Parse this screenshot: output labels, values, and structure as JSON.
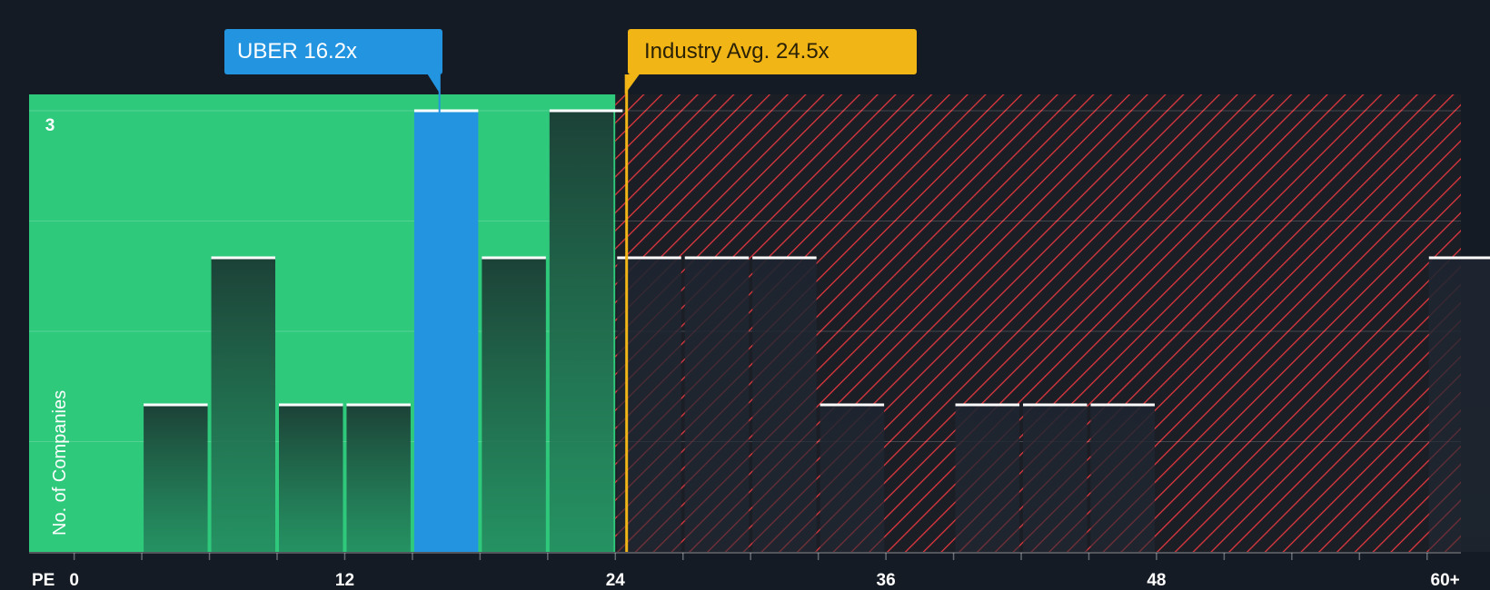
{
  "chart_data": {
    "type": "bar",
    "title": "",
    "xlabel": "PE",
    "ylabel": "No. of Companies",
    "x_ticks": [
      "0",
      "12",
      "24",
      "36",
      "48",
      "60+"
    ],
    "y_ticks": [
      "3"
    ],
    "ylim": [
      0,
      3
    ],
    "xlim": [
      -2,
      61.5
    ],
    "bins": [
      {
        "start": 3,
        "end": 6,
        "count": 1,
        "highlight": false
      },
      {
        "start": 6,
        "end": 9,
        "count": 2,
        "highlight": false
      },
      {
        "start": 9,
        "end": 12,
        "count": 1,
        "highlight": false
      },
      {
        "start": 12,
        "end": 15,
        "count": 1,
        "highlight": false
      },
      {
        "start": 15,
        "end": 18,
        "count": 3,
        "highlight": true
      },
      {
        "start": 18,
        "end": 21,
        "count": 2,
        "highlight": false
      },
      {
        "start": 21,
        "end": 24,
        "count": 3,
        "highlight": false
      },
      {
        "start": 24,
        "end": 27,
        "count": 2,
        "highlight": false
      },
      {
        "start": 27,
        "end": 30,
        "count": 2,
        "highlight": false
      },
      {
        "start": 30,
        "end": 33,
        "count": 2,
        "highlight": false
      },
      {
        "start": 33,
        "end": 36,
        "count": 1,
        "highlight": false
      },
      {
        "start": 39,
        "end": 42,
        "count": 1,
        "highlight": false
      },
      {
        "start": 42,
        "end": 45,
        "count": 1,
        "highlight": false
      },
      {
        "start": 45,
        "end": 48,
        "count": 1,
        "highlight": false
      },
      {
        "start": 60,
        "end": 63,
        "count": 2,
        "highlight": false
      }
    ],
    "fair_value_threshold": 24,
    "annotations": {
      "company": {
        "label": "UBER 16.2x",
        "value": 16.2
      },
      "industry": {
        "label": "Industry Avg. 24.5x",
        "value": 24.5
      }
    }
  },
  "colors": {
    "background": "#151b24",
    "undervalued_zone": "#2fc97c",
    "overvalued_zone": "#e0383e",
    "company_bar": "#2394e0",
    "industry_line": "#f2b516"
  }
}
